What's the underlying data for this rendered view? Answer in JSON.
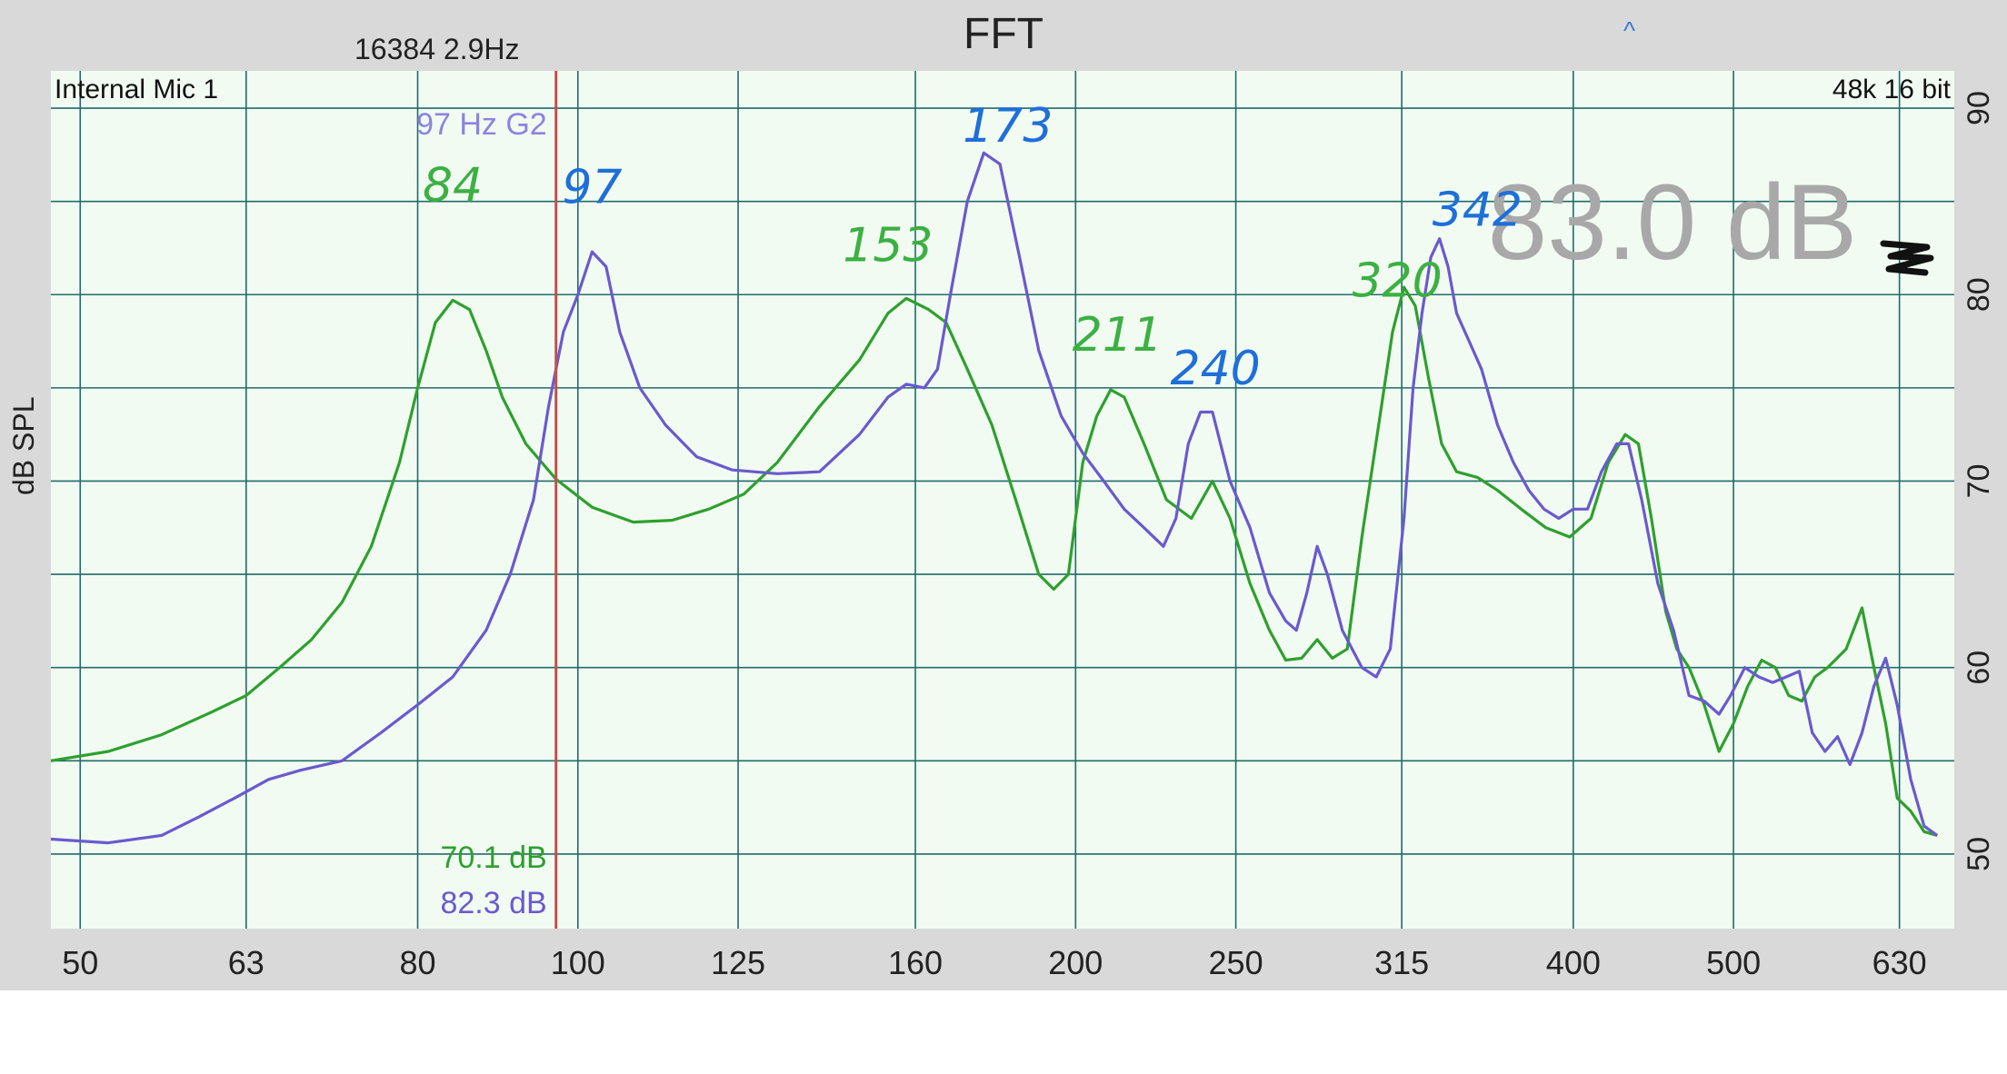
{
  "header": {
    "title": "FFT",
    "fft_info": "16384  2.9Hz",
    "collapse_glyph": "^"
  },
  "plot": {
    "input_label": "Internal Mic 1",
    "format_label": "48k 16 bit",
    "cursor_label": "97 Hz G2",
    "cursor_value_green": "70.1 dB",
    "cursor_value_blue": "82.3 dB",
    "level_readout": "83.0 dB",
    "background": "#f2fbf2",
    "grid_color": "#1f6b6b",
    "cursor_color": "#c0504d",
    "panel_color": "#d9d9d9"
  },
  "chart_data": {
    "type": "line",
    "xscale": "log",
    "xlim": [
      48,
      680
    ],
    "ylim": [
      46,
      92
    ],
    "ylabel": "dB SPL",
    "x_ticks": [
      50,
      63,
      80,
      100,
      125,
      160,
      200,
      250,
      315,
      400,
      500,
      630
    ],
    "x_tick_labels": [
      "50",
      "63",
      "80",
      "100",
      "125",
      "160",
      "200",
      "250",
      "315",
      "400",
      "500",
      "630"
    ],
    "y_ticks": [
      50,
      60,
      70,
      80,
      90
    ],
    "y_tick_labels": [
      "50",
      "60",
      "70",
      "80",
      "90"
    ],
    "grid": true,
    "cursor_x": 97,
    "series": [
      {
        "color": "#2ea02e",
        "points": [
          [
            48,
            55
          ],
          [
            52,
            55.5
          ],
          [
            56,
            56.4
          ],
          [
            60,
            57.6
          ],
          [
            63,
            58.5
          ],
          [
            66,
            60
          ],
          [
            69,
            61.5
          ],
          [
            72,
            63.5
          ],
          [
            75,
            66.5
          ],
          [
            78,
            71
          ],
          [
            80,
            75
          ],
          [
            82,
            78.5
          ],
          [
            84,
            79.7
          ],
          [
            86,
            79.2
          ],
          [
            88,
            77
          ],
          [
            90,
            74.5
          ],
          [
            93,
            72
          ],
          [
            97,
            70.1
          ],
          [
            102,
            68.6
          ],
          [
            108,
            67.8
          ],
          [
            114,
            67.9
          ],
          [
            120,
            68.5
          ],
          [
            126,
            69.3
          ],
          [
            132,
            71
          ],
          [
            140,
            74
          ],
          [
            148,
            76.5
          ],
          [
            154,
            79
          ],
          [
            158,
            79.8
          ],
          [
            163,
            79.2
          ],
          [
            167,
            78.5
          ],
          [
            172,
            76
          ],
          [
            178,
            73
          ],
          [
            184,
            69
          ],
          [
            190,
            65
          ],
          [
            194,
            64.2
          ],
          [
            198,
            65
          ],
          [
            202,
            71
          ],
          [
            206,
            73.5
          ],
          [
            210,
            74.9
          ],
          [
            214,
            74.5
          ],
          [
            220,
            72
          ],
          [
            227,
            69
          ],
          [
            235,
            68
          ],
          [
            242,
            70
          ],
          [
            248,
            68
          ],
          [
            255,
            64.5
          ],
          [
            262,
            62
          ],
          [
            268,
            60.4
          ],
          [
            274,
            60.5
          ],
          [
            280,
            61.5
          ],
          [
            286,
            60.5
          ],
          [
            292,
            61
          ],
          [
            298,
            67
          ],
          [
            305,
            73
          ],
          [
            311,
            78
          ],
          [
            316,
            80.4
          ],
          [
            321,
            79.4
          ],
          [
            327,
            75.5
          ],
          [
            333,
            72
          ],
          [
            340,
            70.5
          ],
          [
            350,
            70.2
          ],
          [
            360,
            69.5
          ],
          [
            372,
            68.5
          ],
          [
            385,
            67.5
          ],
          [
            398,
            67
          ],
          [
            410,
            68
          ],
          [
            420,
            71
          ],
          [
            430,
            72.5
          ],
          [
            438,
            72
          ],
          [
            446,
            68
          ],
          [
            455,
            63
          ],
          [
            462,
            61
          ],
          [
            470,
            60
          ],
          [
            480,
            58
          ],
          [
            490,
            55.5
          ],
          [
            500,
            57
          ],
          [
            510,
            59
          ],
          [
            520,
            60.4
          ],
          [
            530,
            60
          ],
          [
            540,
            58.5
          ],
          [
            550,
            58.2
          ],
          [
            560,
            59.5
          ],
          [
            570,
            60
          ],
          [
            585,
            61
          ],
          [
            598,
            63.2
          ],
          [
            608,
            60
          ],
          [
            618,
            57
          ],
          [
            628,
            53
          ],
          [
            640,
            52.3
          ],
          [
            652,
            51.2
          ],
          [
            664,
            51
          ]
        ]
      },
      {
        "color": "#6a5acd",
        "points": [
          [
            48,
            50.8
          ],
          [
            52,
            50.6
          ],
          [
            56,
            51
          ],
          [
            59,
            52
          ],
          [
            62,
            53
          ],
          [
            65,
            54
          ],
          [
            68,
            54.5
          ],
          [
            72,
            55
          ],
          [
            76,
            56.5
          ],
          [
            80,
            58
          ],
          [
            84,
            59.5
          ],
          [
            88,
            62
          ],
          [
            91,
            65
          ],
          [
            94,
            69
          ],
          [
            96,
            74
          ],
          [
            98,
            78
          ],
          [
            100,
            80
          ],
          [
            102,
            82.3
          ],
          [
            104,
            81.5
          ],
          [
            106,
            78
          ],
          [
            109,
            75
          ],
          [
            113,
            73
          ],
          [
            118,
            71.3
          ],
          [
            124,
            70.6
          ],
          [
            132,
            70.4
          ],
          [
            140,
            70.5
          ],
          [
            148,
            72.5
          ],
          [
            154,
            74.5
          ],
          [
            158,
            75.2
          ],
          [
            162,
            75
          ],
          [
            165,
            76
          ],
          [
            168,
            80
          ],
          [
            172,
            85
          ],
          [
            176,
            87.6
          ],
          [
            180,
            87
          ],
          [
            185,
            82
          ],
          [
            190,
            77
          ],
          [
            196,
            73.5
          ],
          [
            202,
            71.5
          ],
          [
            208,
            70
          ],
          [
            214,
            68.5
          ],
          [
            220,
            67.5
          ],
          [
            226,
            66.5
          ],
          [
            230,
            68
          ],
          [
            234,
            72
          ],
          [
            238,
            73.7
          ],
          [
            242,
            73.7
          ],
          [
            248,
            70
          ],
          [
            255,
            67.5
          ],
          [
            262,
            64
          ],
          [
            268,
            62.5
          ],
          [
            272,
            62
          ],
          [
            276,
            64
          ],
          [
            280,
            66.5
          ],
          [
            284,
            65
          ],
          [
            290,
            62
          ],
          [
            298,
            60
          ],
          [
            304,
            59.5
          ],
          [
            310,
            61
          ],
          [
            316,
            68
          ],
          [
            320,
            75
          ],
          [
            324,
            79
          ],
          [
            328,
            82
          ],
          [
            332,
            83
          ],
          [
            336,
            81.5
          ],
          [
            340,
            79
          ],
          [
            346,
            77.5
          ],
          [
            352,
            76
          ],
          [
            360,
            73
          ],
          [
            368,
            71
          ],
          [
            376,
            69.5
          ],
          [
            384,
            68.5
          ],
          [
            392,
            68
          ],
          [
            400,
            68.5
          ],
          [
            408,
            68.5
          ],
          [
            416,
            70.5
          ],
          [
            425,
            72
          ],
          [
            432,
            72
          ],
          [
            440,
            69
          ],
          [
            450,
            64.5
          ],
          [
            460,
            62
          ],
          [
            470,
            58.5
          ],
          [
            480,
            58.2
          ],
          [
            490,
            57.5
          ],
          [
            498,
            58.5
          ],
          [
            508,
            60
          ],
          [
            518,
            59.5
          ],
          [
            528,
            59.2
          ],
          [
            538,
            59.5
          ],
          [
            548,
            59.8
          ],
          [
            558,
            56.5
          ],
          [
            568,
            55.5
          ],
          [
            578,
            56.3
          ],
          [
            588,
            54.8
          ],
          [
            598,
            56.5
          ],
          [
            608,
            59
          ],
          [
            618,
            60.5
          ],
          [
            628,
            58
          ],
          [
            640,
            54
          ],
          [
            652,
            51.5
          ],
          [
            664,
            51
          ]
        ]
      }
    ],
    "annotations": [
      {
        "text": "84",
        "color": "#3cb043",
        "x": 84,
        "y": 85
      },
      {
        "text": "97",
        "color": "#1e6fd9",
        "x": 102,
        "y": 84.9
      },
      {
        "text": "153",
        "color": "#3cb043",
        "x": 154,
        "y": 81.8
      },
      {
        "text": "173",
        "color": "#1e6fd9",
        "x": 182,
        "y": 88.2
      },
      {
        "text": "211",
        "color": "#3cb043",
        "x": 212,
        "y": 77
      },
      {
        "text": "240",
        "color": "#1e6fd9",
        "x": 243,
        "y": 75.2
      },
      {
        "text": "320",
        "color": "#3cb043",
        "x": 313,
        "y": 79.9
      },
      {
        "text": "342",
        "color": "#1e6fd9",
        "x": 350,
        "y": 83.7
      }
    ]
  }
}
